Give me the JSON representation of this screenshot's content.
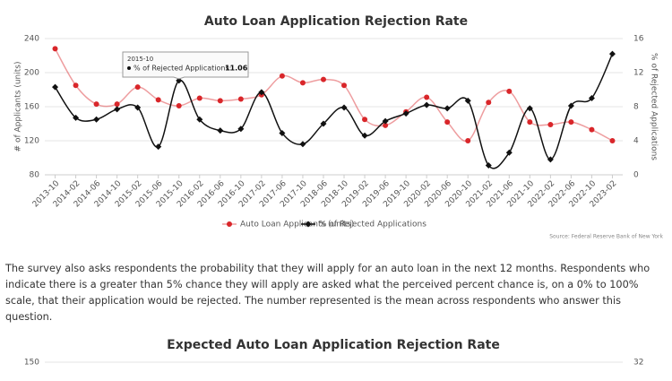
{
  "chart_data": [
    {
      "type": "line",
      "title": "Auto Loan Application Rejection Rate",
      "categories": [
        "2013-10",
        "2014-02",
        "2014-06",
        "2014-10",
        "2015-02",
        "2015-06",
        "2015-10",
        "2016-02",
        "2016-06",
        "2016-10",
        "2017-02",
        "2017-06",
        "2017-10",
        "2018-06",
        "2018-10",
        "2019-02",
        "2019-06",
        "2019-10",
        "2020-02",
        "2020-06",
        "2020-10",
        "2021-02",
        "2021-06",
        "2021-10",
        "2022-02",
        "2022-06",
        "2022-10",
        "2023-02"
      ],
      "series": [
        {
          "name": "Auto Loan Applicants (units)",
          "color": "#d9262a",
          "marker": "circle",
          "axis": "y",
          "values": [
            228,
            185,
            163,
            163,
            183,
            168,
            161,
            170,
            167,
            169,
            174,
            196,
            188,
            192,
            185,
            145,
            138,
            154,
            171,
            142,
            120,
            165,
            178,
            142,
            139,
            142,
            133,
            120
          ]
        },
        {
          "name": "% of Rejected Applications",
          "color": "#111111",
          "marker": "diamond",
          "axis": "y2",
          "values": [
            10.3,
            6.7,
            6.5,
            7.7,
            7.9,
            3.3,
            11.06,
            6.5,
            5.2,
            5.4,
            9.7,
            4.9,
            3.6,
            6.0,
            7.9,
            4.6,
            6.3,
            7.2,
            8.2,
            7.8,
            8.7,
            1.1,
            2.6,
            7.8,
            1.8,
            8.1,
            9.0,
            14.2
          ]
        }
      ],
      "ylabel": "# of Applicants (units)",
      "y2label": "% of Rejected Applications",
      "ylim": [
        80,
        240
      ],
      "yticks": [
        80,
        120,
        160,
        200,
        240
      ],
      "y2lim": [
        0,
        16
      ],
      "y2ticks": [
        0,
        4,
        8,
        12,
        16
      ],
      "grid": true,
      "legend": "bottom",
      "tooltip": {
        "index": 6,
        "series": 1,
        "label": "% of Rejected Applications:"
      },
      "source": "Source: Federal Reserve Bank of New York"
    },
    {
      "type": "line",
      "title": "Expected Auto Loan Application Rejection Rate",
      "yticks": [
        150
      ],
      "y2ticks": [
        32
      ]
    }
  ],
  "paragraph": "The survey also asks respondents the probability that they will apply for an auto loan in the next 12 months. Respondents who indicate there is a greater than 5% chance they will apply are asked what the perceived percent chance is, on a 0% to 100% scale, that their application would be rejected. The number represented is the mean across respondents who answer this question."
}
